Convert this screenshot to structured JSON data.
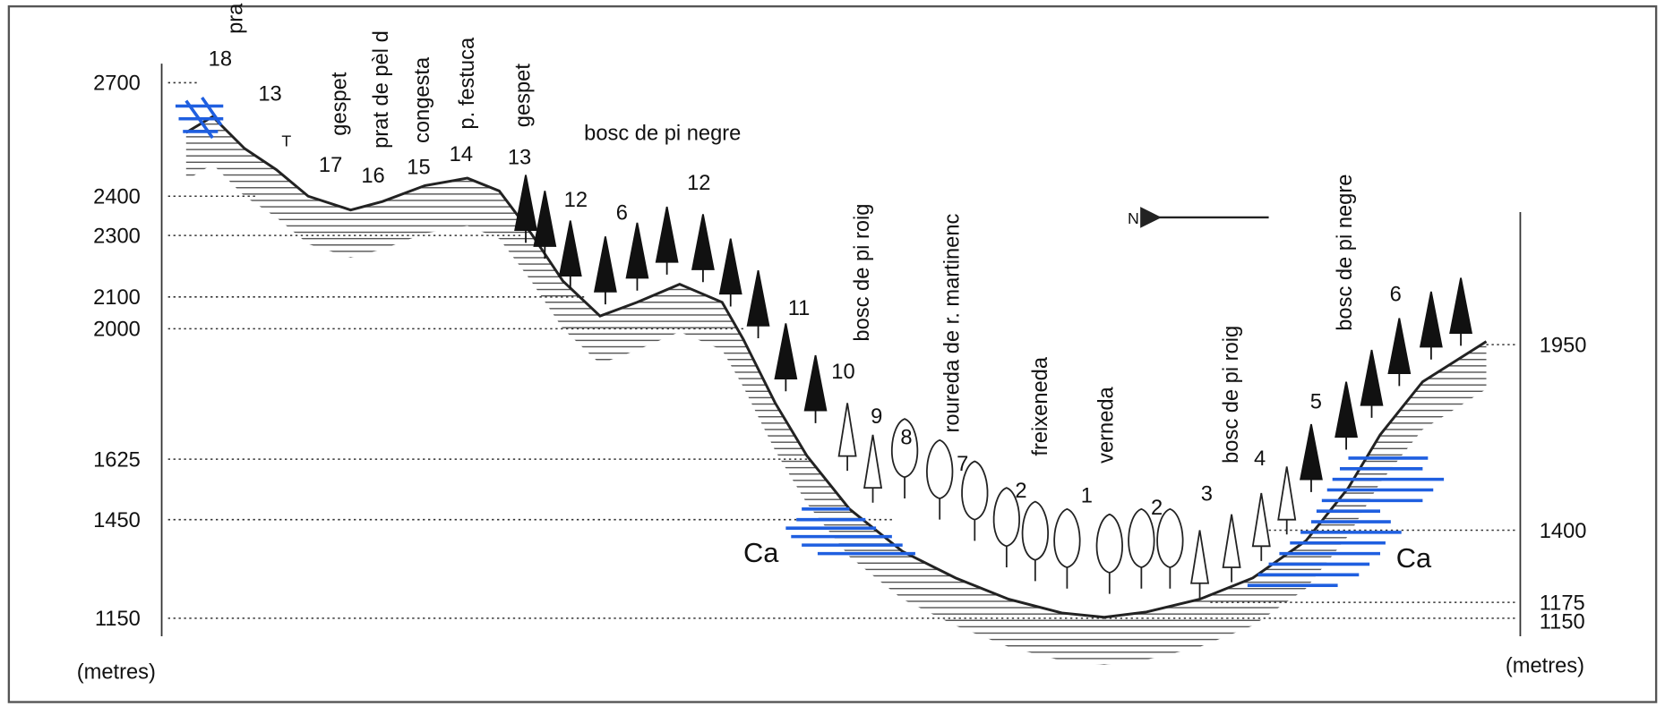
{
  "left_axis": {
    "labels": [
      "2700",
      "2400",
      "2300",
      "2100",
      "2000",
      "1625",
      "1450",
      "1150"
    ],
    "unit": "(metres)"
  },
  "right_axis": {
    "labels": [
      "1950",
      "1400",
      "1175",
      "1150"
    ],
    "unit": "(metres)"
  },
  "vegetation_labels": [
    "pra",
    "gespet",
    "prat de pèl d",
    "congesta",
    "p. festuca",
    "gespet",
    "bosc de pi negre",
    "bosc de pi roig",
    "roureda de r. martinenc",
    "freixeneda",
    "verneda",
    "bosc de pi roig",
    "bosc de pi negre"
  ],
  "zone_numbers": [
    "18",
    "13",
    "T",
    "17",
    "16",
    "15",
    "14",
    "13",
    "12",
    "6",
    "12",
    "11",
    "10",
    "9",
    "8",
    "7",
    "2",
    "1",
    "2",
    "3",
    "4",
    "5",
    "6"
  ],
  "rock_labels": [
    "Ca",
    "Ca"
  ],
  "north_label": "N"
}
